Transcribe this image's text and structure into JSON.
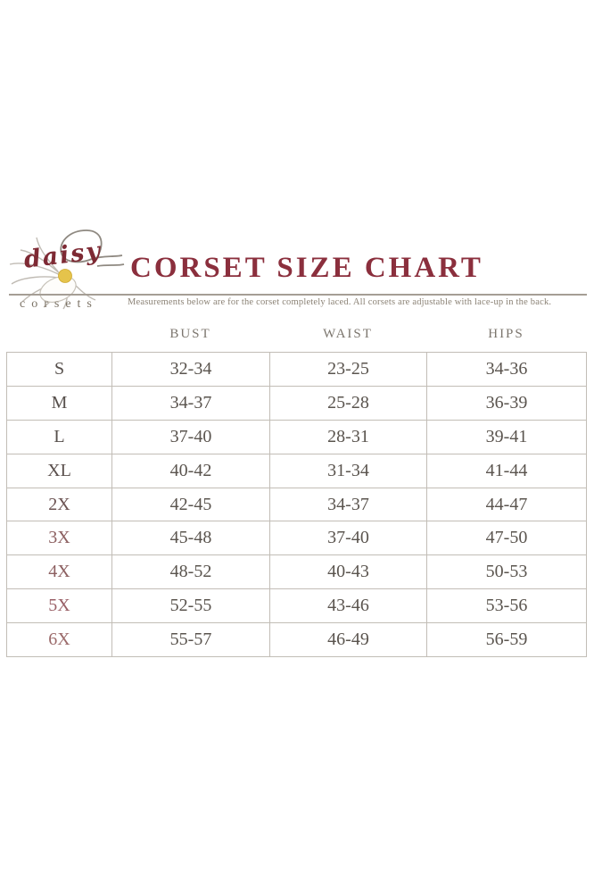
{
  "brand": {
    "script_text": "daisy",
    "sub_text": "corsets",
    "flower_icon": "daisy-flower-icon"
  },
  "header": {
    "title": "CORSET SIZE CHART",
    "subtitle": "Measurements below are for the corset completely laced. All corsets are adjustable with lace-up in the back."
  },
  "chart_data": {
    "type": "table",
    "title": "CORSET SIZE CHART",
    "note": "Measurements below are for the corset completely laced. All corsets are adjustable with lace-up in the back.",
    "columns": [
      "BUST",
      "WAIST",
      "HIPS"
    ],
    "rows": [
      {
        "size": "S",
        "bust": "32-34",
        "waist": "23-25",
        "hips": "34-36"
      },
      {
        "size": "M",
        "bust": "34-37",
        "waist": "25-28",
        "hips": "36-39"
      },
      {
        "size": "L",
        "bust": "37-40",
        "waist": "28-31",
        "hips": "39-41"
      },
      {
        "size": "XL",
        "bust": "40-42",
        "waist": "31-34",
        "hips": "41-44"
      },
      {
        "size": "2X",
        "bust": "42-45",
        "waist": "34-37",
        "hips": "44-47"
      },
      {
        "size": "3X",
        "bust": "45-48",
        "waist": "37-40",
        "hips": "47-50"
      },
      {
        "size": "4X",
        "bust": "48-52",
        "waist": "40-43",
        "hips": "50-53"
      },
      {
        "size": "5X",
        "bust": "52-55",
        "waist": "43-46",
        "hips": "53-56"
      },
      {
        "size": "6X",
        "bust": "55-57",
        "waist": "46-49",
        "hips": "56-59"
      }
    ]
  },
  "colors": {
    "title_color": "#8b2f3d",
    "brand_script_color": "#7e2a34",
    "brand_sub_color": "#7b7265",
    "subtitle_color": "#8b8275",
    "header_color": "#7c766e",
    "border_color": "#c2bdb6",
    "cell_text": "#5a544e",
    "rule_color": "#a59e95",
    "flower_center": "#e5c34b",
    "size_label_colors": [
      "#57504c",
      "#57504c",
      "#57504c",
      "#5a4f4c",
      "#6b5352",
      "#8c5f60",
      "#8c5f60",
      "#995f66",
      "#9b6a6a"
    ]
  }
}
